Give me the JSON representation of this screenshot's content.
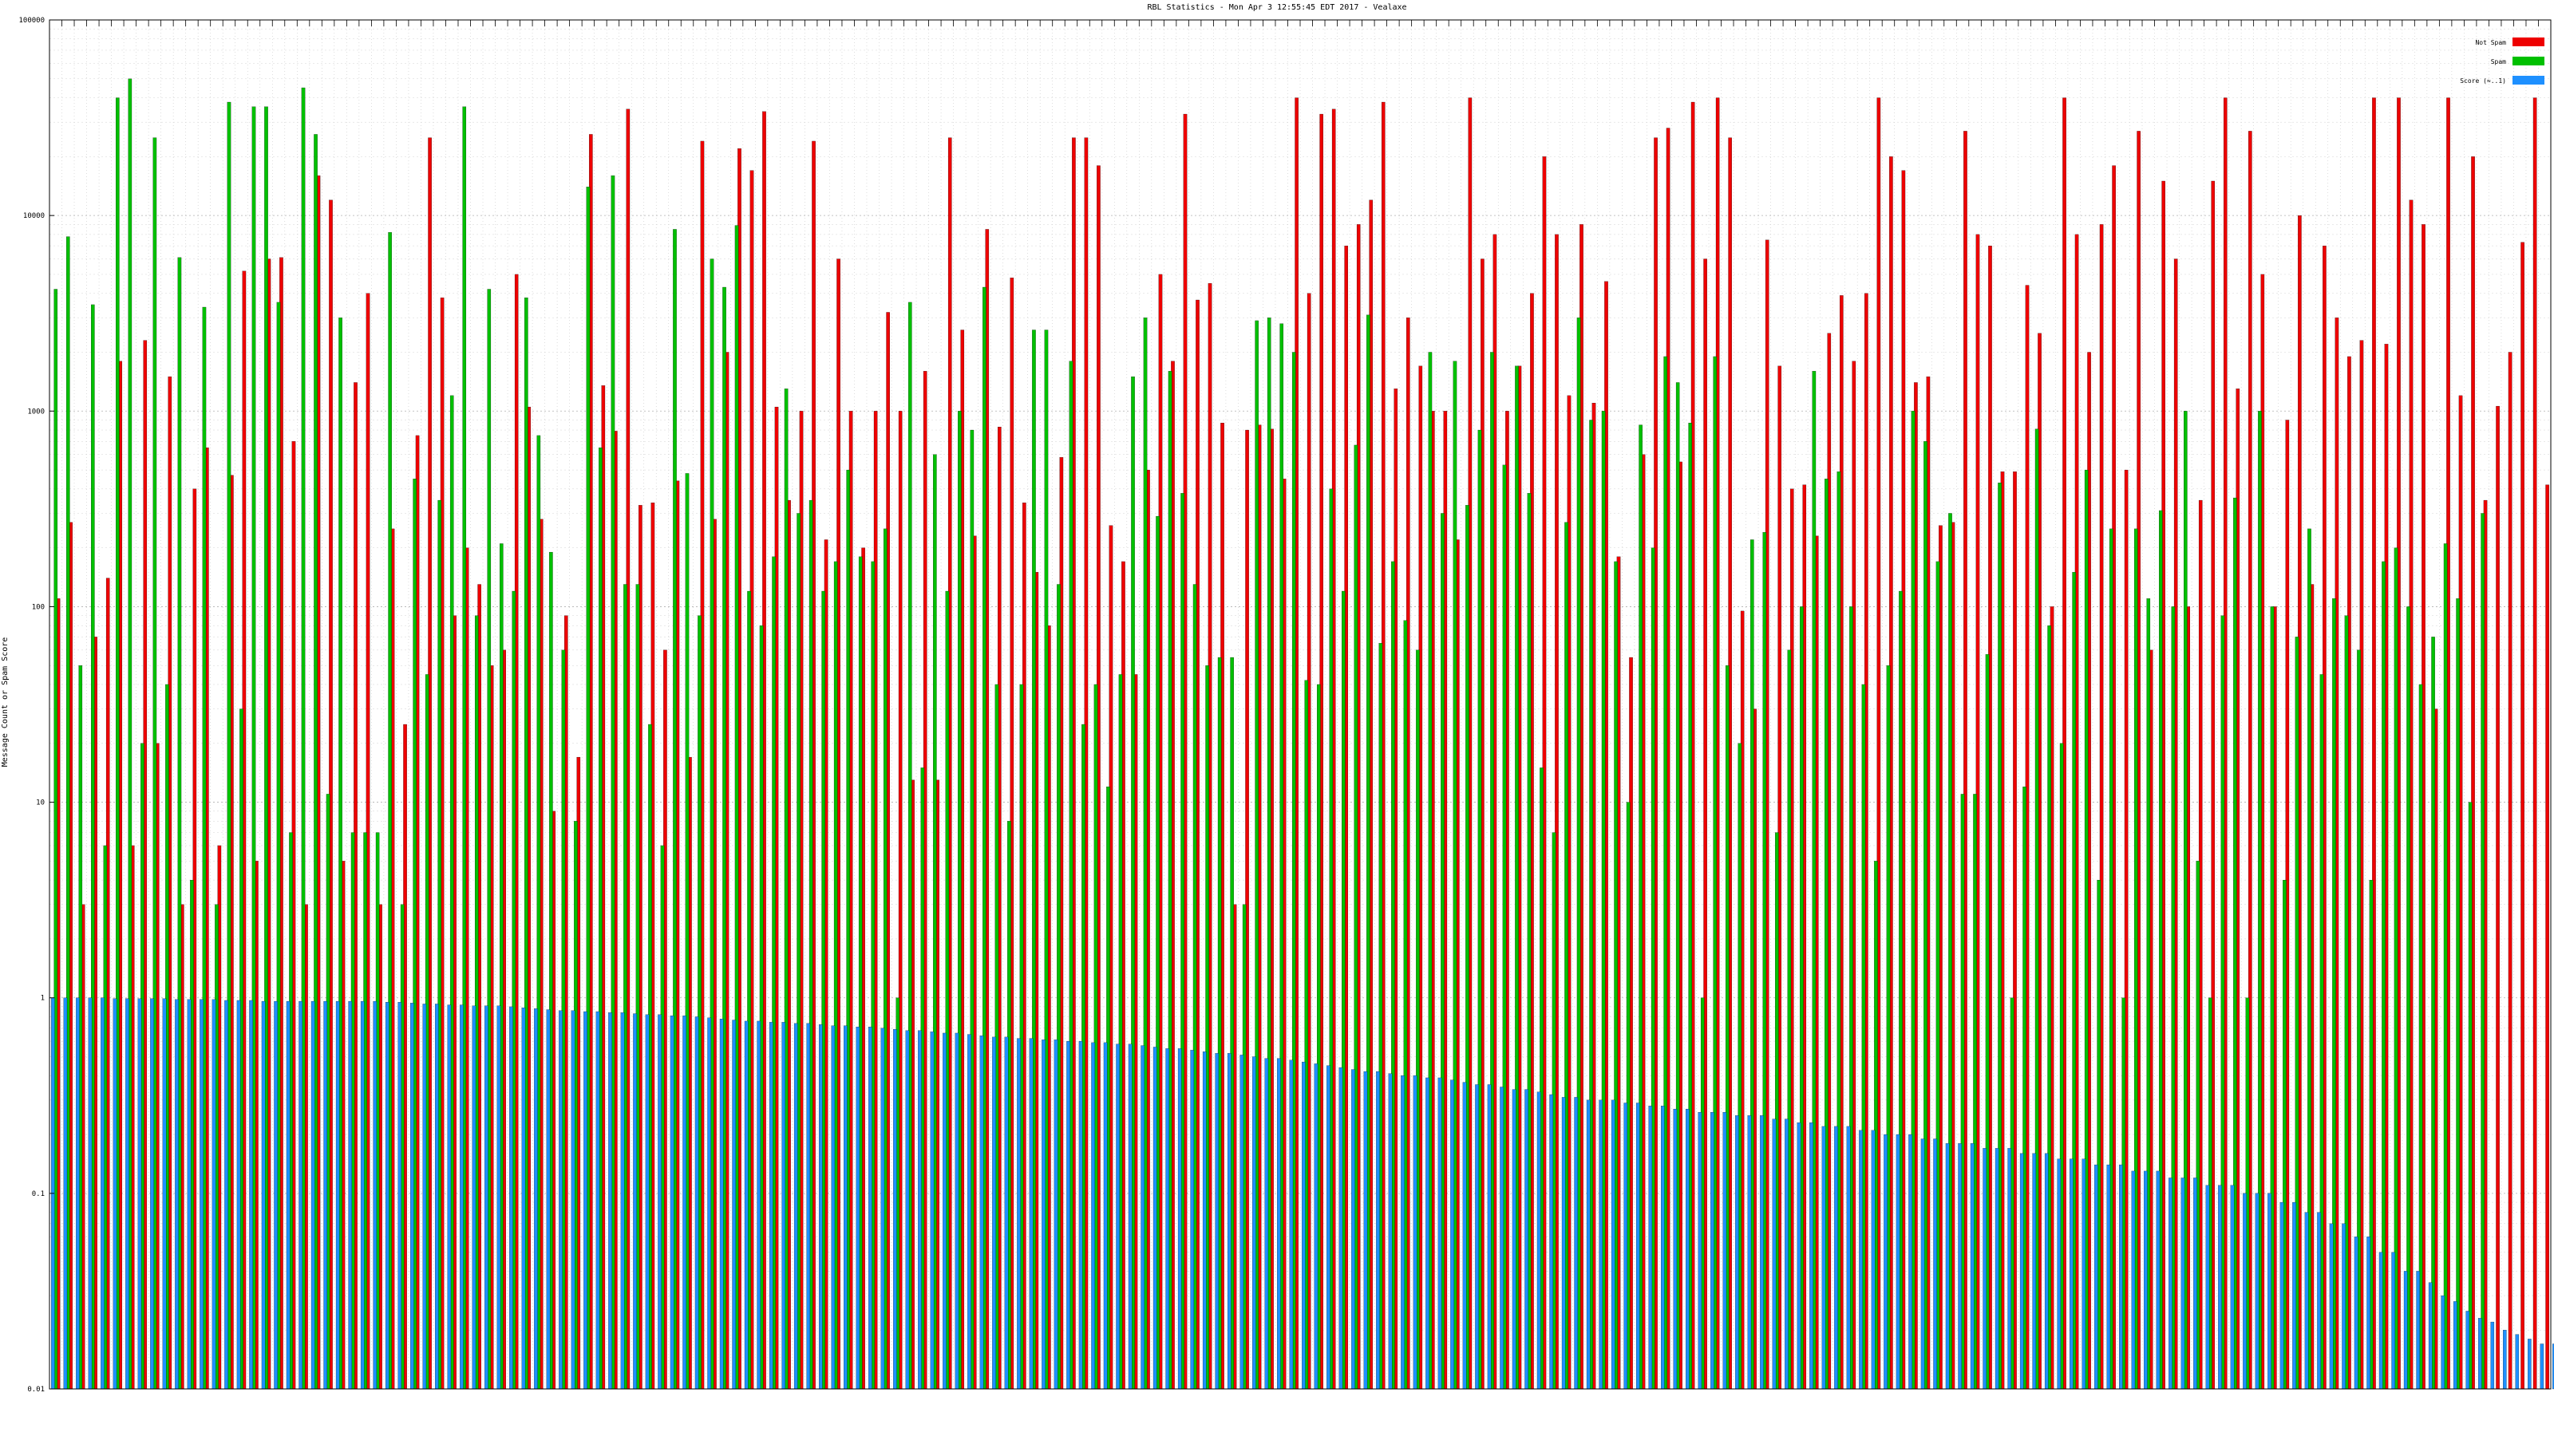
{
  "chart_data": {
    "type": "bar",
    "title": "RBL Statistics - Mon Apr  3 12:55:45 EDT 2017 - Vealaxe",
    "xlabel": "",
    "ylabel": "Message Count or Spam Score",
    "yscale": "log",
    "ylim": [
      0.01,
      100000
    ],
    "yticks": [
      "0.01",
      "0.1",
      "1",
      "10",
      "100",
      "1000",
      "10000",
      "100000"
    ],
    "grid": true,
    "legend_position": "top-right",
    "series": [
      {
        "name": "Not Spam",
        "color": "#ee0000",
        "values": [
          110,
          270,
          3,
          70,
          140,
          1800,
          6,
          2300,
          20,
          1500,
          3,
          400,
          650,
          6,
          470,
          5200,
          5,
          6000,
          6100,
          700,
          3,
          16000,
          12000,
          5,
          1400,
          4000,
          3,
          250,
          25,
          750,
          25000,
          3800,
          90,
          200,
          130,
          50,
          60,
          5000,
          1050,
          280,
          9,
          90,
          17,
          26000,
          1350,
          790,
          35000,
          330,
          340,
          60,
          440,
          17,
          24000,
          280,
          2000,
          22000,
          17000,
          34000,
          1050,
          350,
          1000,
          24000,
          220,
          6000,
          1000,
          200,
          1000,
          3200,
          1000,
          13,
          1600,
          13,
          25000,
          2600,
          230,
          8500,
          830,
          4800,
          340,
          150,
          80,
          580,
          25000,
          25000,
          18000,
          260,
          170,
          45,
          500,
          5000,
          1800,
          33000,
          3700,
          4500,
          870,
          3,
          800,
          850,
          810,
          450,
          40000,
          4000,
          33000,
          35000,
          7000,
          9000,
          12000,
          38000,
          1300,
          3000,
          1700,
          1000,
          1000,
          220,
          40000,
          6000,
          8000,
          1000,
          1700,
          4000,
          20000,
          8000,
          1200,
          9000,
          1100,
          4600,
          180,
          55,
          600,
          25000,
          28000,
          550,
          38000,
          6000,
          40000,
          25000,
          95,
          30,
          7500,
          1700,
          400,
          420,
          230,
          2500,
          3900,
          1800,
          4000,
          40000,
          20000,
          17000,
          1400,
          1500,
          260,
          270,
          27000,
          8000,
          7000,
          490,
          490,
          4400,
          2500,
          100,
          40000,
          8000,
          2000,
          9000,
          18000,
          500,
          27000,
          60,
          15000,
          6000,
          100,
          350,
          15000,
          40000,
          1300,
          27000,
          5000,
          100,
          900,
          10000,
          130,
          7000,
          3000,
          1900,
          2300,
          40000,
          2200,
          40000,
          12000,
          9000,
          30,
          40000,
          1200,
          20000,
          350,
          1060,
          2000,
          7300,
          40000,
          420
        ]
      },
      {
        "name": "Spam",
        "color": "#00c000",
        "values": [
          4200,
          7800,
          50,
          3500,
          6,
          40000,
          50000,
          20,
          25000,
          40,
          6100,
          4,
          3400,
          3,
          38000,
          30,
          36000,
          36000,
          3600,
          7,
          45000,
          26000,
          11,
          3000,
          7,
          7,
          7,
          8200,
          3,
          450,
          45,
          350,
          1200,
          36000,
          90,
          4200,
          210,
          120,
          3800,
          750,
          190,
          60,
          8,
          14000,
          650,
          16000,
          130,
          130,
          25,
          6,
          8500,
          480,
          90,
          6000,
          4300,
          8900,
          120,
          80,
          180,
          1300,
          300,
          350,
          120,
          170,
          500,
          180,
          170,
          250,
          1,
          3600,
          15,
          600,
          120,
          1000,
          800,
          4300,
          40,
          8,
          40,
          2600,
          2600,
          130,
          1800,
          25,
          40,
          12,
          45,
          1500,
          3000,
          290,
          1600,
          380,
          130,
          50,
          55,
          55,
          3,
          2900,
          3000,
          2800,
          2000,
          42,
          40,
          400,
          120,
          670,
          3100,
          65,
          170,
          85,
          60,
          2000,
          300,
          1800,
          330,
          800,
          2000,
          530,
          1700,
          380,
          15,
          7,
          270,
          3000,
          900,
          1000,
          170,
          10,
          850,
          200,
          1900,
          1400,
          870,
          1,
          1900,
          50,
          20,
          220,
          240,
          7,
          60,
          100,
          1600,
          450,
          490,
          100,
          40,
          5,
          50,
          120,
          1000,
          700,
          170,
          300,
          11,
          11,
          57,
          430,
          1,
          12,
          810,
          80,
          20,
          150,
          500,
          4,
          250,
          1,
          250,
          110,
          310,
          100,
          1000,
          5,
          1,
          90,
          360,
          1,
          1000,
          100,
          4,
          70,
          250,
          45,
          110,
          90,
          60,
          4,
          170,
          200,
          100,
          40,
          70,
          210,
          110,
          10,
          300
        ]
      },
      {
        "name": "Score (≈..1)",
        "color": "#1e90ff",
        "values": [
          1.0,
          1.0,
          1.0,
          1.0,
          1.0,
          0.99,
          0.99,
          0.99,
          0.99,
          0.99,
          0.98,
          0.98,
          0.98,
          0.98,
          0.97,
          0.97,
          0.97,
          0.96,
          0.96,
          0.96,
          0.96,
          0.96,
          0.96,
          0.96,
          0.96,
          0.96,
          0.96,
          0.95,
          0.95,
          0.94,
          0.93,
          0.93,
          0.92,
          0.92,
          0.91,
          0.91,
          0.91,
          0.9,
          0.89,
          0.88,
          0.87,
          0.86,
          0.86,
          0.85,
          0.85,
          0.84,
          0.84,
          0.83,
          0.82,
          0.82,
          0.81,
          0.81,
          0.8,
          0.79,
          0.78,
          0.77,
          0.76,
          0.76,
          0.75,
          0.75,
          0.74,
          0.74,
          0.73,
          0.72,
          0.72,
          0.71,
          0.71,
          0.7,
          0.69,
          0.68,
          0.68,
          0.67,
          0.66,
          0.66,
          0.65,
          0.64,
          0.63,
          0.63,
          0.62,
          0.62,
          0.61,
          0.61,
          0.6,
          0.6,
          0.59,
          0.59,
          0.58,
          0.58,
          0.57,
          0.56,
          0.55,
          0.55,
          0.54,
          0.53,
          0.52,
          0.52,
          0.51,
          0.5,
          0.49,
          0.49,
          0.48,
          0.47,
          0.46,
          0.45,
          0.44,
          0.43,
          0.42,
          0.42,
          0.41,
          0.4,
          0.4,
          0.39,
          0.39,
          0.38,
          0.37,
          0.36,
          0.36,
          0.35,
          0.34,
          0.34,
          0.33,
          0.32,
          0.31,
          0.31,
          0.3,
          0.3,
          0.3,
          0.29,
          0.29,
          0.28,
          0.28,
          0.27,
          0.27,
          0.26,
          0.26,
          0.26,
          0.25,
          0.25,
          0.25,
          0.24,
          0.24,
          0.23,
          0.23,
          0.22,
          0.22,
          0.22,
          0.21,
          0.21,
          0.2,
          0.2,
          0.2,
          0.19,
          0.19,
          0.18,
          0.18,
          0.18,
          0.17,
          0.17,
          0.17,
          0.16,
          0.16,
          0.16,
          0.15,
          0.15,
          0.15,
          0.14,
          0.14,
          0.14,
          0.13,
          0.13,
          0.13,
          0.12,
          0.12,
          0.12,
          0.11,
          0.11,
          0.11,
          0.1,
          0.1,
          0.1,
          0.09,
          0.09,
          0.08,
          0.08,
          0.07,
          0.07,
          0.06,
          0.06,
          0.05,
          0.05,
          0.04,
          0.04,
          0.035,
          0.03,
          0.028,
          0.025,
          0.023,
          0.022,
          0.02,
          0.019,
          0.018,
          0.017,
          0.017,
          0.016,
          0.016,
          0.015,
          0.015
        ]
      }
    ]
  }
}
